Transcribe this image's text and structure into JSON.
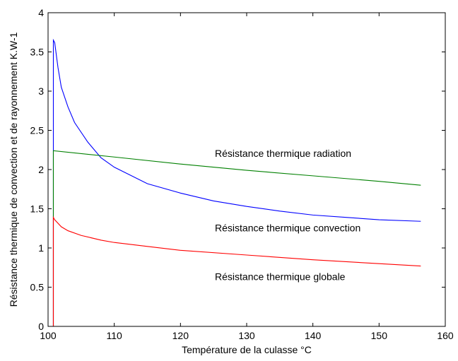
{
  "chart_data": {
    "type": "line",
    "title": "",
    "xlabel": "Température de la culasse °C",
    "ylabel": "Résistance thermique de convection et de rayonnement K.W-1",
    "xlim": [
      100,
      160
    ],
    "ylim": [
      0,
      4
    ],
    "x_ticks": [
      100,
      110,
      120,
      130,
      140,
      150,
      160
    ],
    "y_ticks": [
      0,
      0.5,
      1,
      1.5,
      2,
      2.5,
      3,
      3.5,
      4
    ],
    "x_tick_labels": [
      "100",
      "110",
      "120",
      "130",
      "140",
      "150",
      "160"
    ],
    "y_tick_labels": [
      "0",
      "0.5",
      "1",
      "1.5",
      "2",
      "2.5",
      "3",
      "3.5",
      "4"
    ],
    "grid": false,
    "legend": "none",
    "series": [
      {
        "color": "#0000ff",
        "points": [
          [
            100.8,
            0
          ],
          [
            100.8,
            3.65
          ],
          [
            101,
            3.62
          ],
          [
            101.5,
            3.3
          ],
          [
            102,
            3.05
          ],
          [
            103,
            2.8
          ],
          [
            104,
            2.6
          ],
          [
            106,
            2.35
          ],
          [
            108,
            2.15
          ],
          [
            110,
            2.03
          ],
          [
            115,
            1.82
          ],
          [
            120,
            1.7
          ],
          [
            125,
            1.6
          ],
          [
            130,
            1.53
          ],
          [
            135,
            1.47
          ],
          [
            140,
            1.42
          ],
          [
            145,
            1.39
          ],
          [
            150,
            1.36
          ],
          [
            156.3,
            1.34
          ]
        ]
      },
      {
        "color": "#008000",
        "points": [
          [
            100.8,
            0
          ],
          [
            100.8,
            2.24
          ],
          [
            110,
            2.16
          ],
          [
            120,
            2.07
          ],
          [
            130,
            1.99
          ],
          [
            140,
            1.92
          ],
          [
            150,
            1.85
          ],
          [
            156.3,
            1.8
          ]
        ]
      },
      {
        "color": "#ff0000",
        "points": [
          [
            100.8,
            0
          ],
          [
            100.8,
            1.39
          ],
          [
            101,
            1.36
          ],
          [
            102,
            1.27
          ],
          [
            103,
            1.22
          ],
          [
            105,
            1.16
          ],
          [
            108,
            1.1
          ],
          [
            110,
            1.07
          ],
          [
            115,
            1.02
          ],
          [
            120,
            0.97
          ],
          [
            130,
            0.91
          ],
          [
            140,
            0.85
          ],
          [
            150,
            0.8
          ],
          [
            156.3,
            0.77
          ]
        ]
      }
    ],
    "annotations": [
      {
        "text": "Résistance thermique radiation",
        "x": 125.2,
        "y": 2.16
      },
      {
        "text": "Résistance thermique convection",
        "x": 125.2,
        "y": 1.21
      },
      {
        "text": "Résistance thermique globale",
        "x": 125.2,
        "y": 0.59
      }
    ]
  }
}
